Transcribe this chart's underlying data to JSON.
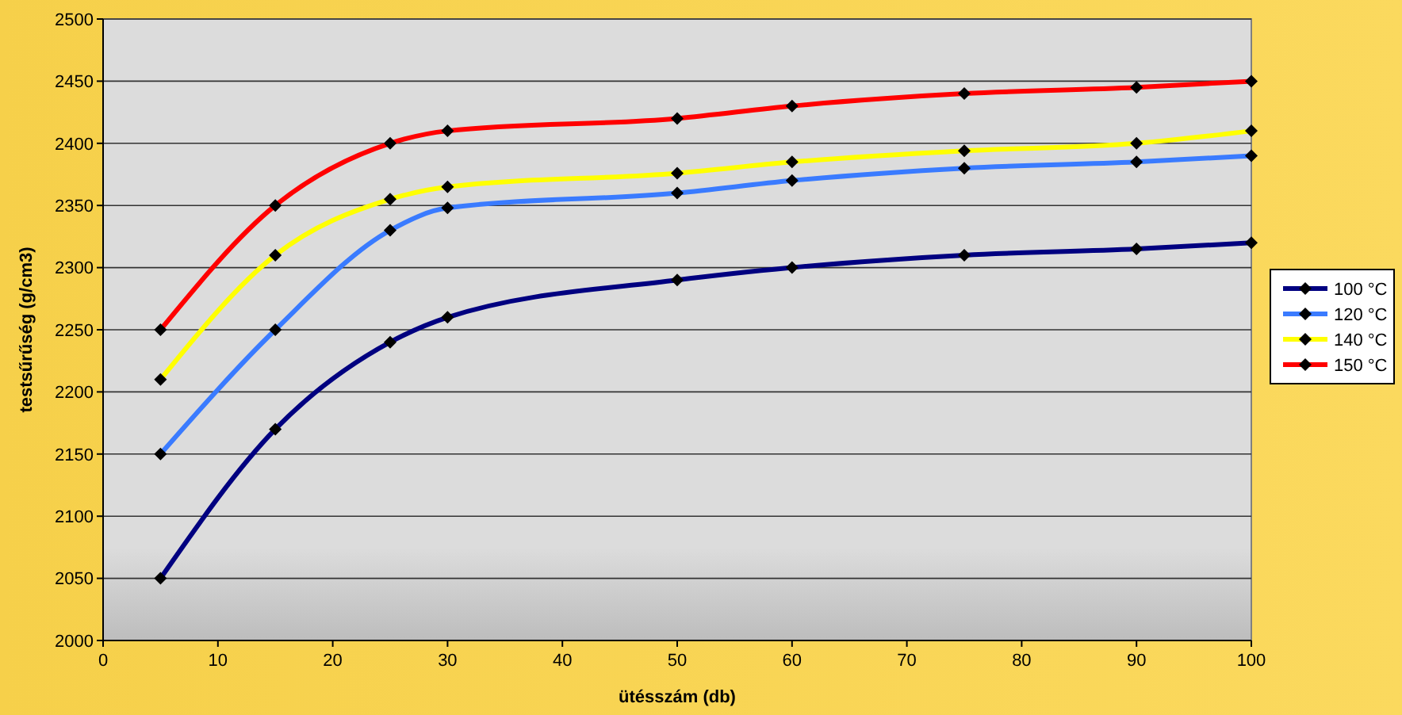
{
  "chart_data": {
    "type": "line",
    "xlabel": "ütésszám (db)",
    "ylabel": "testsűrűség (g/cm3)",
    "x": [
      5,
      15,
      25,
      30,
      50,
      60,
      75,
      90,
      100
    ],
    "series": [
      {
        "name": "100 °C",
        "color": "#000080",
        "values": [
          2050,
          2170,
          2240,
          2260,
          2290,
          2300,
          2310,
          2315,
          2320
        ]
      },
      {
        "name": "120 °C",
        "color": "#3a7bff",
        "values": [
          2150,
          2250,
          2330,
          2348,
          2360,
          2370,
          2380,
          2385,
          2390
        ]
      },
      {
        "name": "140 °C",
        "color": "#ffff00",
        "values": [
          2210,
          2310,
          2355,
          2365,
          2376,
          2385,
          2394,
          2400,
          2410
        ]
      },
      {
        "name": "150 °C",
        "color": "#ff0000",
        "values": [
          2250,
          2350,
          2400,
          2410,
          2420,
          2430,
          2440,
          2445,
          2450
        ]
      }
    ],
    "xlim": [
      0,
      100
    ],
    "xticks": [
      0,
      10,
      20,
      30,
      40,
      50,
      60,
      70,
      80,
      90,
      100
    ],
    "ylim": [
      2000,
      2500
    ],
    "yticks": [
      2000,
      2050,
      2100,
      2150,
      2200,
      2250,
      2300,
      2350,
      2400,
      2450,
      2500
    ],
    "grid": "y",
    "legend": "right",
    "marker": "diamond",
    "line_style": "solid"
  }
}
